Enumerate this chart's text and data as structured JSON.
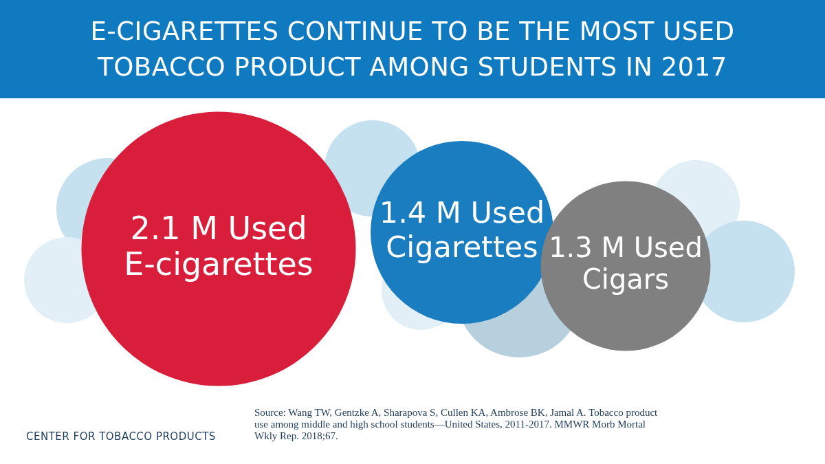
{
  "chart_data": {
    "type": "other",
    "title": "E-CIGARETTES CONTINUE TO BE THE MOST USED TOBACCO PRODUCT AMONG STUDENTS IN 2017",
    "categories": [
      "E-cigarettes",
      "Cigarettes",
      "Cigars"
    ],
    "values": [
      2.1,
      1.4,
      1.3
    ],
    "value_labels": [
      "2.1 M Used",
      "1.4 M Used",
      "1.3 M Used"
    ],
    "colors": [
      "#d81e3a",
      "#1a7dbf",
      "#808080"
    ],
    "annotations": [
      "CENTER FOR TOBACCO PRODUCTS",
      "Source: Wang TW, Gentzke A, Sharapova S, Cullen KA, Ambrose BK, Jamal A. Tobacco product use among middle and high school students—United States, 2011-2017. MMWR Morb Mortal Wkly Rep. 2018;67."
    ]
  }
}
